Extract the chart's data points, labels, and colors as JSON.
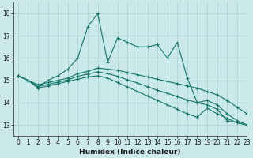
{
  "xlabel": "Humidex (Indice chaleur)",
  "xlim": [
    -0.5,
    23
  ],
  "ylim": [
    12.5,
    18.5
  ],
  "yticks": [
    13,
    14,
    15,
    16,
    17,
    18
  ],
  "xticks": [
    0,
    1,
    2,
    3,
    4,
    5,
    6,
    7,
    8,
    9,
    10,
    11,
    12,
    13,
    14,
    15,
    16,
    17,
    18,
    19,
    20,
    21,
    22,
    23
  ],
  "bg_color": "#cce9e9",
  "line_color": "#1a7a6e",
  "grid_color": "#b0d8d8",
  "series": [
    [
      15.2,
      15.0,
      14.7,
      15.0,
      15.2,
      15.5,
      16.0,
      17.4,
      18.0,
      15.8,
      16.9,
      16.7,
      16.5,
      16.5,
      16.6,
      16.0,
      16.7,
      15.1,
      14.0,
      13.9,
      13.7,
      13.2,
      13.1,
      13.0
    ],
    [
      15.2,
      15.0,
      14.8,
      14.9,
      15.0,
      15.1,
      15.3,
      15.4,
      15.55,
      15.5,
      15.45,
      15.35,
      15.25,
      15.15,
      15.05,
      14.95,
      14.85,
      14.75,
      14.65,
      14.5,
      14.35,
      14.1,
      13.8,
      13.5
    ],
    [
      15.2,
      15.0,
      14.65,
      14.75,
      14.85,
      14.95,
      15.05,
      15.15,
      15.2,
      15.1,
      14.9,
      14.7,
      14.5,
      14.3,
      14.1,
      13.9,
      13.7,
      13.5,
      13.35,
      13.75,
      13.5,
      13.3,
      13.1,
      13.0
    ],
    [
      15.2,
      15.0,
      14.72,
      14.82,
      14.92,
      15.02,
      15.18,
      15.28,
      15.38,
      15.3,
      15.18,
      15.02,
      14.88,
      14.72,
      14.55,
      14.42,
      14.27,
      14.12,
      14.0,
      14.1,
      13.9,
      13.5,
      13.2,
      13.0
    ]
  ]
}
